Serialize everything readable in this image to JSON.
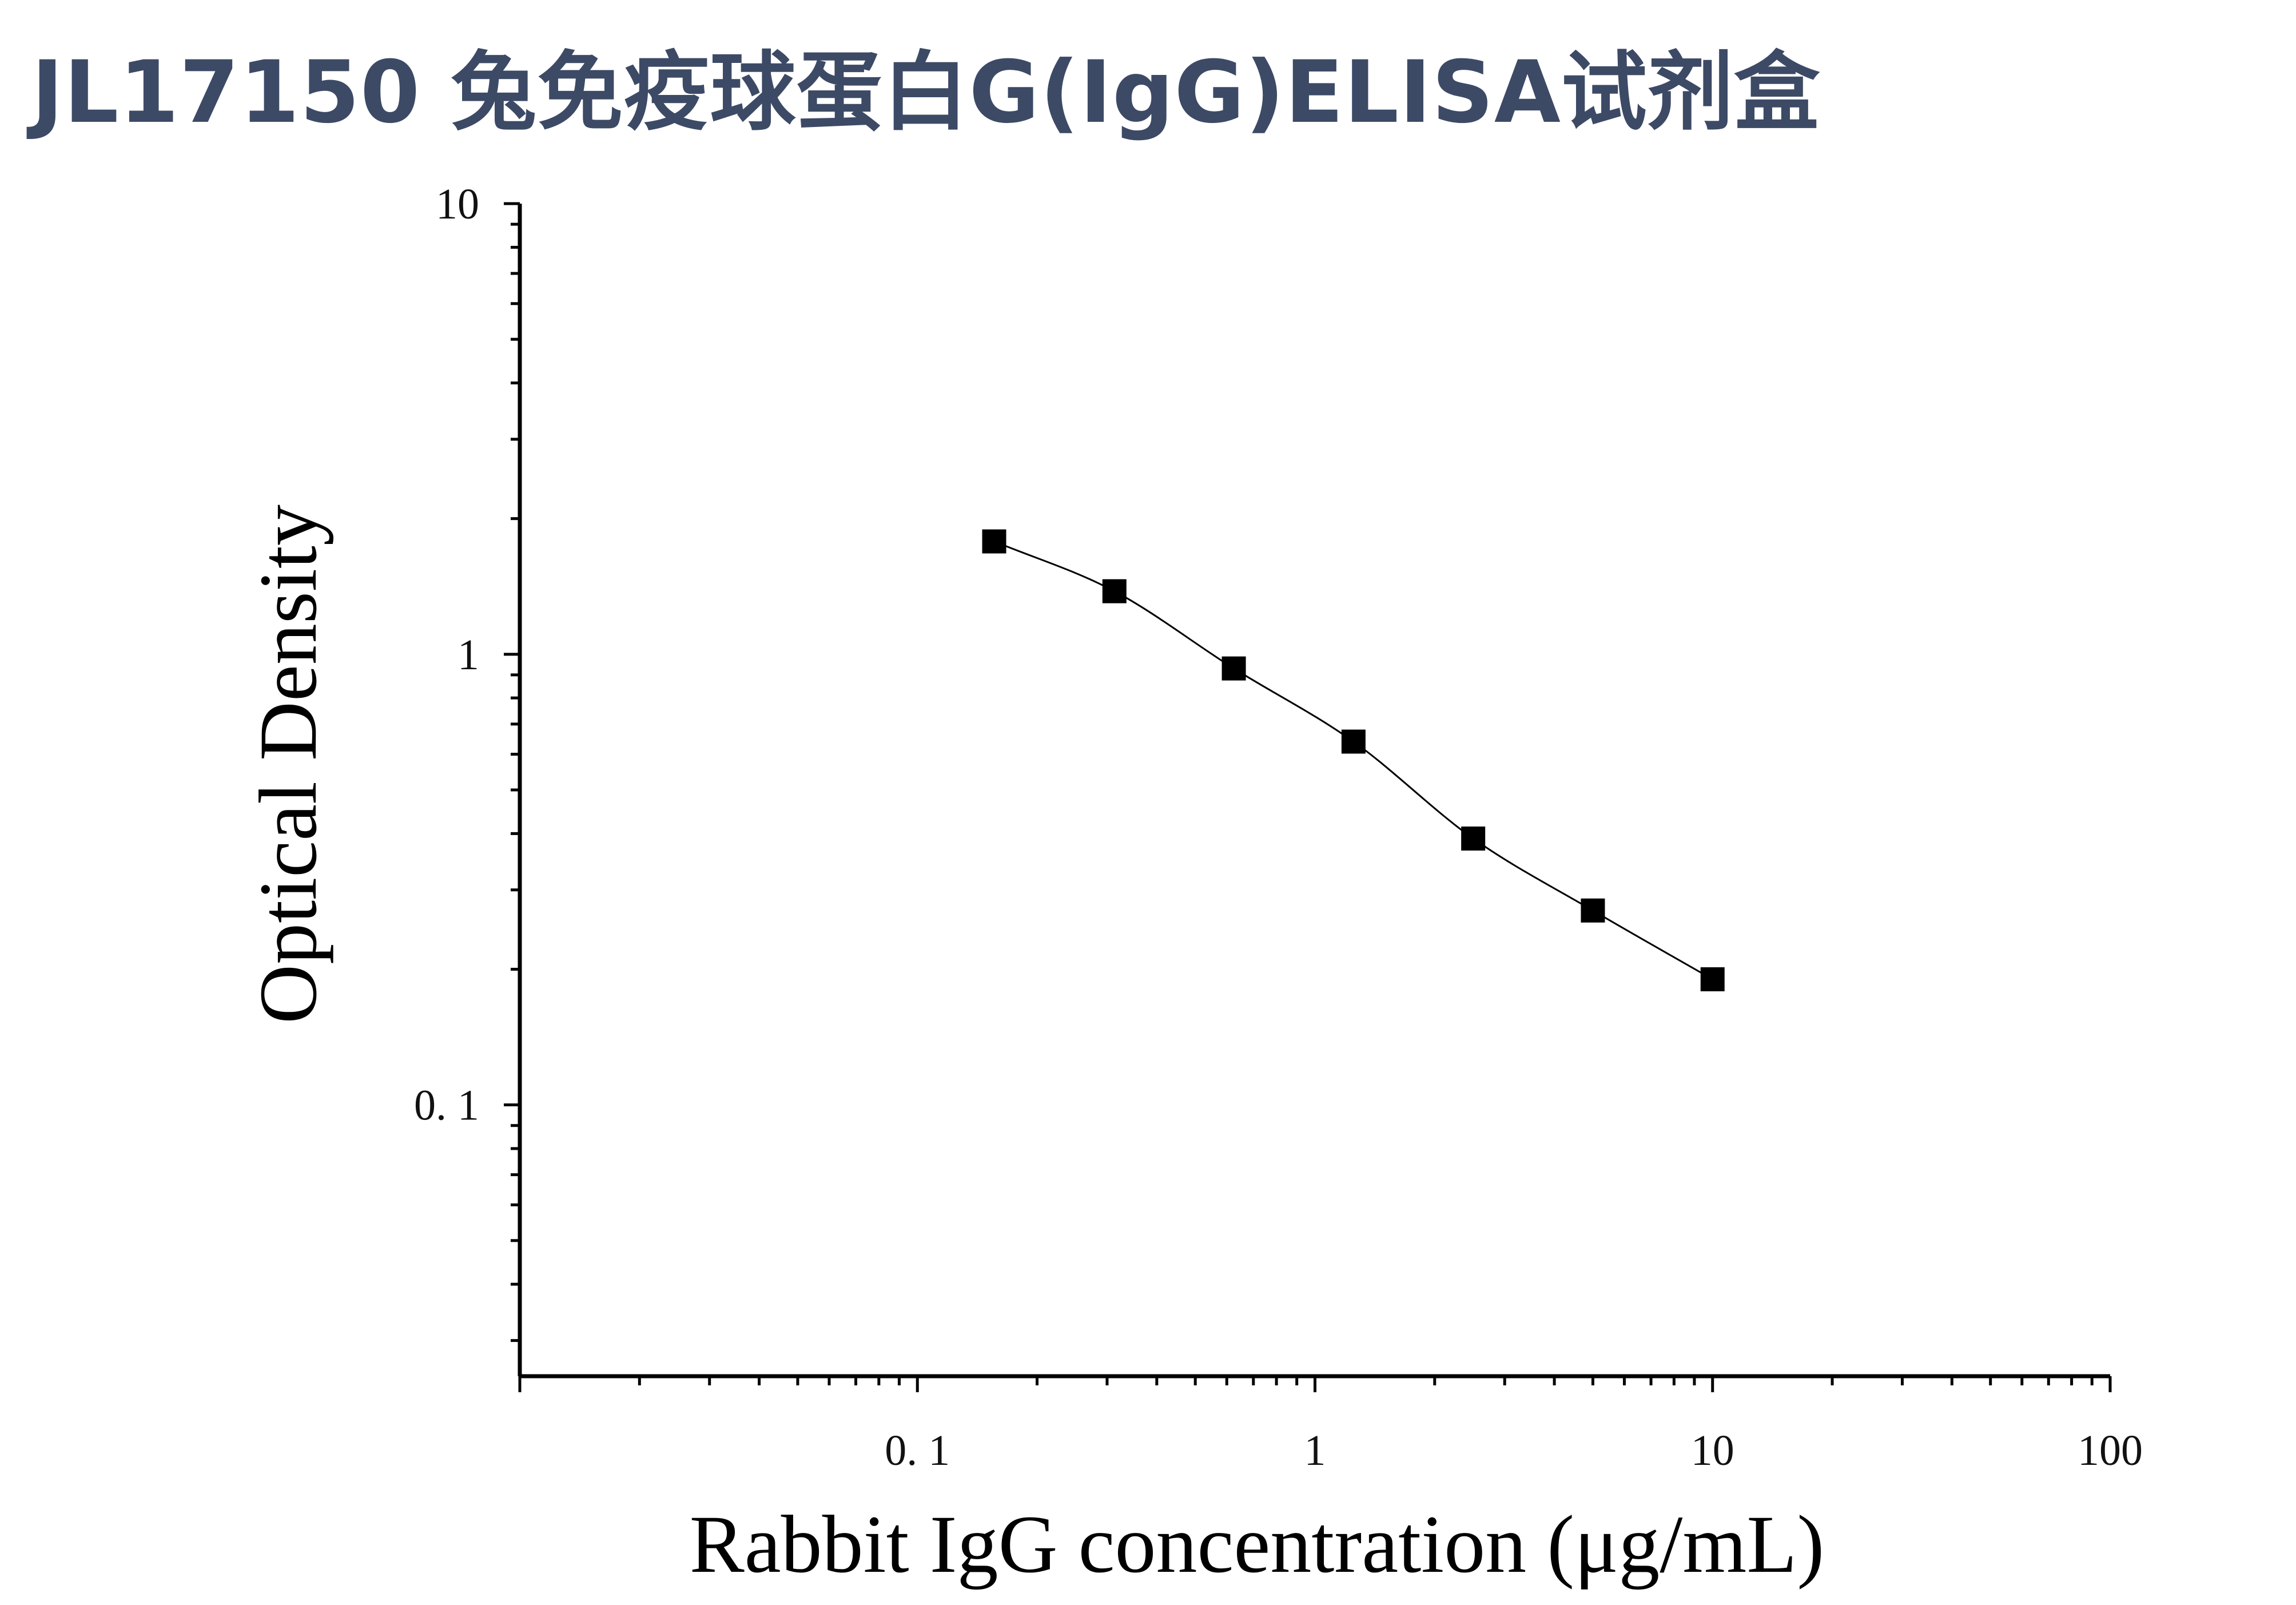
{
  "title": "JL17150 兔免疫球蛋白G(IgG)ELISA试剂盒",
  "chart_data": {
    "type": "scatter",
    "xscale": "log",
    "yscale": "log",
    "xlim": [
      0.01,
      100
    ],
    "ylim": [
      0.025,
      10
    ],
    "xlabel": "Rabbit IgG concentration (μg/mL)",
    "ylabel": "Optical Density",
    "x_tick_labels": [
      "0. 1",
      "1",
      "10",
      "100"
    ],
    "y_tick_labels": [
      "0. 1",
      "1",
      "10"
    ],
    "x_ticks": [
      0.1,
      1,
      10,
      100
    ],
    "y_ticks": [
      0.1,
      1,
      10
    ],
    "series": [
      {
        "marker": "square",
        "color": "#000000",
        "line": "fitted-curve",
        "x": [
          0.156,
          0.313,
          0.625,
          1.25,
          2.5,
          5,
          10
        ],
        "y": [
          1.78,
          1.38,
          0.93,
          0.64,
          0.39,
          0.27,
          0.19
        ]
      }
    ]
  }
}
